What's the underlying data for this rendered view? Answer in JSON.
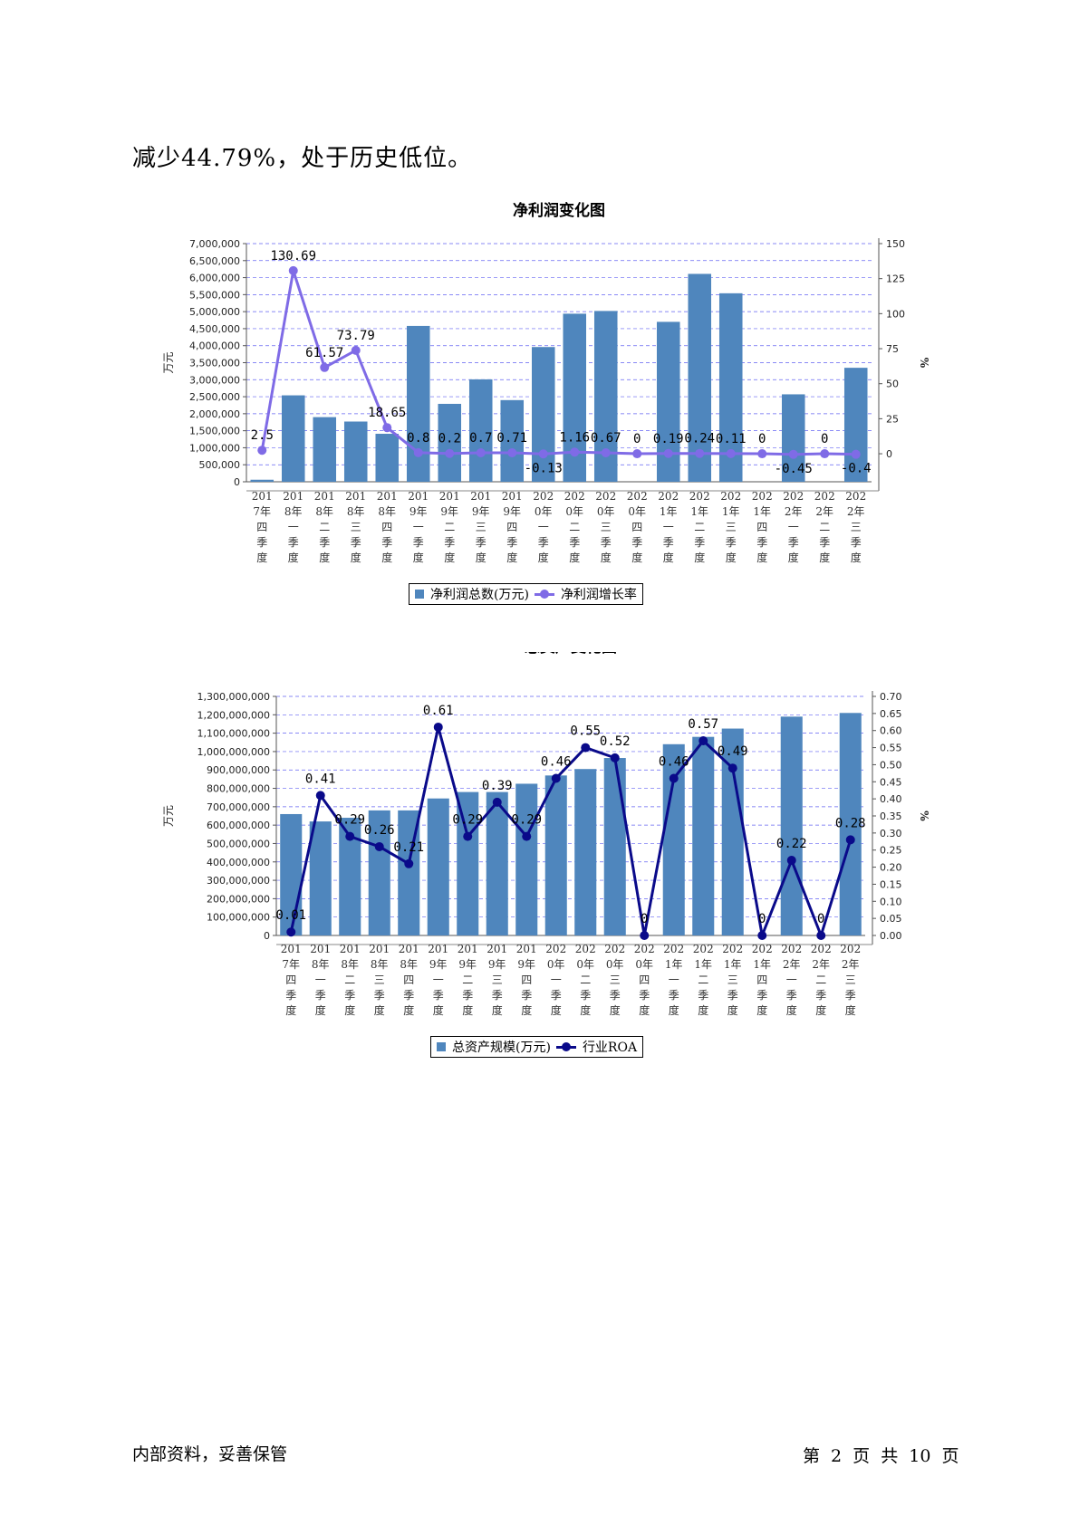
{
  "intro_text": "减少44.79%，处于历史低位。",
  "footer": {
    "left": "内部资料，妥善保管",
    "right": "第 2 页 共 10 页"
  },
  "chart_data": [
    {
      "type": "bar",
      "title": "净利润变化图",
      "ylabel": "万元",
      "y2label": "%",
      "ylim": [
        0,
        7000000
      ],
      "y2lim": [
        -20,
        150
      ],
      "yticks": [
        "0",
        "500,000",
        "1,000,000",
        "1,500,000",
        "2,000,000",
        "2,500,000",
        "3,000,000",
        "3,500,000",
        "4,000,000",
        "4,500,000",
        "5,000,000",
        "5,500,000",
        "6,000,000",
        "6,500,000",
        "7,000,000"
      ],
      "y2ticks": [
        "0",
        "25",
        "50",
        "75",
        "100",
        "125",
        "150"
      ],
      "categories": [
        [
          "201",
          "7年",
          "四",
          "季",
          "度"
        ],
        [
          "201",
          "8年",
          "一",
          "季",
          "度"
        ],
        [
          "201",
          "8年",
          "二",
          "季",
          "度"
        ],
        [
          "201",
          "8年",
          "三",
          "季",
          "度"
        ],
        [
          "201",
          "8年",
          "四",
          "季",
          "度"
        ],
        [
          "201",
          "9年",
          "一",
          "季",
          "度"
        ],
        [
          "201",
          "9年",
          "二",
          "季",
          "度"
        ],
        [
          "201",
          "9年",
          "三",
          "季",
          "度"
        ],
        [
          "201",
          "9年",
          "四",
          "季",
          "度"
        ],
        [
          "202",
          "0年",
          "一",
          "季",
          "度"
        ],
        [
          "202",
          "0年",
          "二",
          "季",
          "度"
        ],
        [
          "202",
          "0年",
          "三",
          "季",
          "度"
        ],
        [
          "202",
          "0年",
          "四",
          "季",
          "度"
        ],
        [
          "202",
          "1年",
          "一",
          "季",
          "度"
        ],
        [
          "202",
          "1年",
          "二",
          "季",
          "度"
        ],
        [
          "202",
          "1年",
          "三",
          "季",
          "度"
        ],
        [
          "202",
          "1年",
          "四",
          "季",
          "度"
        ],
        [
          "202",
          "2年",
          "一",
          "季",
          "度"
        ],
        [
          "202",
          "2年",
          "二",
          "季",
          "度"
        ],
        [
          "202",
          "2年",
          "三",
          "季",
          "度"
        ]
      ],
      "series": [
        {
          "name": "净利润总数(万元)",
          "kind": "bar",
          "axis": "left",
          "color": "#4f86bd",
          "values": [
            60000,
            2540000,
            1900000,
            1770000,
            1410000,
            4580000,
            2290000,
            3010000,
            2400000,
            3960000,
            4940000,
            5020000,
            0,
            4700000,
            6110000,
            5540000,
            0,
            2570000,
            0,
            3350000
          ]
        },
        {
          "name": "净利润增长率",
          "kind": "line",
          "axis": "right",
          "color": "#7f6be6",
          "values": [
            2.5,
            130.69,
            61.57,
            73.79,
            18.65,
            0.8,
            0.2,
            0.7,
            0.71,
            -0.13,
            1.16,
            0.67,
            0,
            0.19,
            0.24,
            0.11,
            0,
            -0.45,
            0,
            -0.4
          ],
          "labels": [
            "2.5",
            "130.69",
            "61.57",
            "73.79",
            "18.65",
            "0.8",
            "0.2",
            "0.7",
            "0.71",
            "-0.13",
            "1.16",
            "0.67",
            "0",
            "0.19",
            "0.24",
            "0.11",
            "0",
            "-0.45",
            "0",
            "-0.4"
          ]
        }
      ]
    },
    {
      "type": "bar",
      "title": "总资产变化图",
      "ylabel": "万元",
      "y2label": "%",
      "ylim": [
        0,
        1300000000
      ],
      "y2lim": [
        0,
        0.7
      ],
      "yticks": [
        "0",
        "100,000,000",
        "200,000,000",
        "300,000,000",
        "400,000,000",
        "500,000,000",
        "600,000,000",
        "700,000,000",
        "800,000,000",
        "900,000,000",
        "1,000,000,000",
        "1,100,000,000",
        "1,200,000,000",
        "1,300,000,000"
      ],
      "y2ticks": [
        "0.00",
        "0.05",
        "0.10",
        "0.15",
        "0.20",
        "0.25",
        "0.30",
        "0.35",
        "0.40",
        "0.45",
        "0.50",
        "0.55",
        "0.60",
        "0.65",
        "0.70"
      ],
      "categories": [
        [
          "201",
          "7年",
          "四",
          "季",
          "度"
        ],
        [
          "201",
          "8年",
          "一",
          "季",
          "度"
        ],
        [
          "201",
          "8年",
          "二",
          "季",
          "度"
        ],
        [
          "201",
          "8年",
          "三",
          "季",
          "度"
        ],
        [
          "201",
          "8年",
          "四",
          "季",
          "度"
        ],
        [
          "201",
          "9年",
          "一",
          "季",
          "度"
        ],
        [
          "201",
          "9年",
          "二",
          "季",
          "度"
        ],
        [
          "201",
          "9年",
          "三",
          "季",
          "度"
        ],
        [
          "201",
          "9年",
          "四",
          "季",
          "度"
        ],
        [
          "202",
          "0年",
          "一",
          "季",
          "度"
        ],
        [
          "202",
          "0年",
          "二",
          "季",
          "度"
        ],
        [
          "202",
          "0年",
          "三",
          "季",
          "度"
        ],
        [
          "202",
          "0年",
          "四",
          "季",
          "度"
        ],
        [
          "202",
          "1年",
          "一",
          "季",
          "度"
        ],
        [
          "202",
          "1年",
          "二",
          "季",
          "度"
        ],
        [
          "202",
          "1年",
          "三",
          "季",
          "度"
        ],
        [
          "202",
          "1年",
          "四",
          "季",
          "度"
        ],
        [
          "202",
          "2年",
          "一",
          "季",
          "度"
        ],
        [
          "202",
          "2年",
          "二",
          "季",
          "度"
        ],
        [
          "202",
          "2年",
          "三",
          "季",
          "度"
        ]
      ],
      "series": [
        {
          "name": "总资产规模(万元)",
          "kind": "bar",
          "axis": "left",
          "color": "#4f86bd",
          "values": [
            660000000,
            620000000,
            640000000,
            680000000,
            680000000,
            745000000,
            780000000,
            780000000,
            825000000,
            870000000,
            905000000,
            965000000,
            0,
            1040000000,
            1080000000,
            1125000000,
            0,
            1190000000,
            0,
            1210000000
          ]
        },
        {
          "name": "行业ROA",
          "kind": "line",
          "axis": "right",
          "color": "#0a0a8a",
          "values": [
            0.01,
            0.41,
            0.29,
            0.26,
            0.21,
            0.61,
            0.29,
            0.39,
            0.29,
            0.46,
            0.55,
            0.52,
            0,
            0.46,
            0.57,
            0.49,
            0,
            0.22,
            0,
            0.28
          ],
          "labels": [
            "0.01",
            "0.41",
            "0.29",
            "0.26",
            "0.21",
            "0.61",
            "0.29",
            "0.39",
            "0.29",
            "0.46",
            "0.55",
            "0.52",
            "0",
            "0.46",
            "0.57",
            "0.49",
            "0",
            "0.22",
            "0",
            "0.28"
          ]
        }
      ]
    }
  ]
}
